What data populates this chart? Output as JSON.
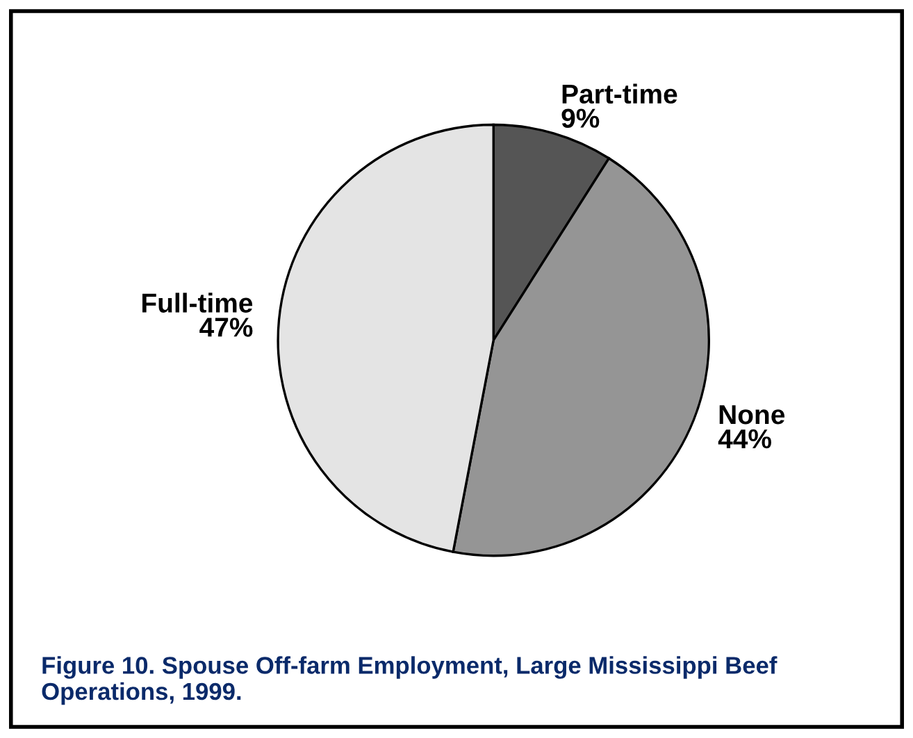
{
  "chart_data": {
    "type": "pie",
    "title": "Figure 10. Spouse Off-farm Employment, Large Mississippi Beef Operations, 1999.",
    "categories": [
      "Part-time",
      "None",
      "Full-time"
    ],
    "values": [
      9,
      44,
      47
    ],
    "colors": [
      "#555555",
      "#959595",
      "#e4e4e4"
    ],
    "value_labels": [
      "9%",
      "44%",
      "47%"
    ]
  }
}
